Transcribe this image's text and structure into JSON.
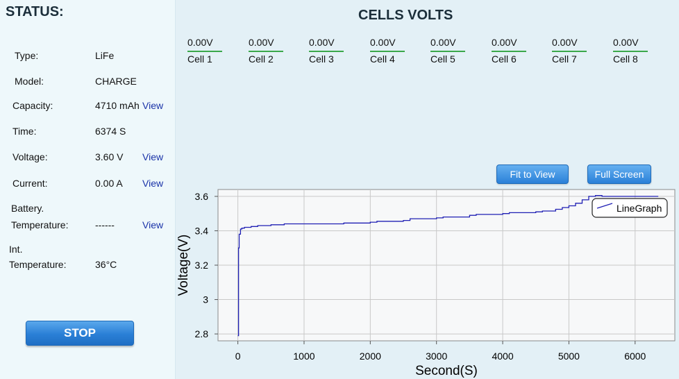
{
  "status": {
    "title": "STATUS:",
    "rows": [
      {
        "label": "Type:",
        "value": "LiFe"
      },
      {
        "label": "Model:",
        "value": "CHARGE"
      },
      {
        "label": "Capacity:",
        "value": "4710 mAh",
        "link": "View"
      },
      {
        "label": "Time:",
        "value": "6374 S"
      },
      {
        "label": "Voltage:",
        "value": "3.60 V",
        "link": "View"
      },
      {
        "label": "Current:",
        "value": "0.00 A",
        "link": "View"
      }
    ],
    "battery_temp": {
      "label1": "Battery.",
      "label2": "Temperature:",
      "value": "------",
      "link": "View"
    },
    "int_temp": {
      "label1": "Int.",
      "label2": "Temperature:",
      "value": "36°C"
    },
    "stop_label": "STOP"
  },
  "cells": {
    "title": "CELLS VOLTS",
    "items": [
      {
        "value": "0.00V",
        "name": "Cell 1"
      },
      {
        "value": "0.00V",
        "name": "Cell 2"
      },
      {
        "value": "0.00V",
        "name": "Cell 3"
      },
      {
        "value": "0.00V",
        "name": "Cell 4"
      },
      {
        "value": "0.00V",
        "name": "Cell 5"
      },
      {
        "value": "0.00V",
        "name": "Cell 6"
      },
      {
        "value": "0.00V",
        "name": "Cell 7"
      },
      {
        "value": "0.00V",
        "name": "Cell 8"
      }
    ],
    "bar_color": "#3aa84a"
  },
  "graph": {
    "fit_label": "Fit to View",
    "full_label": "Full Screen"
  },
  "chart_data": {
    "type": "line",
    "xlabel": "Second(S)",
    "ylabel": "Voltage(V)",
    "xlim": [
      -300,
      6600
    ],
    "ylim": [
      2.76,
      3.64
    ],
    "xticks": [
      0,
      1000,
      2000,
      3000,
      4000,
      5000,
      6000
    ],
    "yticks": [
      2.8,
      3,
      3.2,
      3.4,
      3.6
    ],
    "ytick_labels": [
      "2.8",
      "3",
      "3.2",
      "3.4",
      "3.6"
    ],
    "grid": true,
    "legend": "top-right",
    "series": [
      {
        "name": "LineGraph",
        "color": "#1f1fb4",
        "x": [
          0,
          10,
          20,
          40,
          60,
          100,
          200,
          300,
          500,
          700,
          1000,
          1500,
          1600,
          2000,
          2100,
          2500,
          2600,
          3000,
          3100,
          3500,
          3600,
          4000,
          4100,
          4500,
          4600,
          4800,
          4900,
          5000,
          5100,
          5200,
          5300,
          5400,
          5500,
          6000,
          6350
        ],
        "values": [
          2.79,
          3.3,
          3.38,
          3.41,
          3.415,
          3.42,
          3.425,
          3.43,
          3.435,
          3.44,
          3.44,
          3.44,
          3.445,
          3.45,
          3.455,
          3.46,
          3.47,
          3.475,
          3.48,
          3.49,
          3.495,
          3.5,
          3.505,
          3.51,
          3.515,
          3.525,
          3.535,
          3.545,
          3.56,
          3.58,
          3.6,
          3.605,
          3.6,
          3.6,
          3.6
        ]
      }
    ]
  }
}
